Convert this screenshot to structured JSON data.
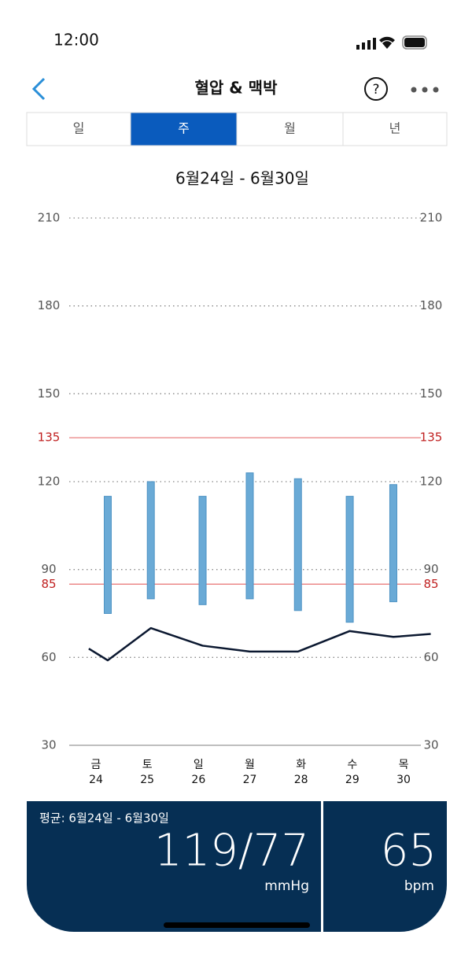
{
  "status_bar": {
    "time": "12:00"
  },
  "header": {
    "title": "혈압 & 맥박"
  },
  "tabs": {
    "items": [
      "일",
      "주",
      "월",
      "년"
    ],
    "selected": 1
  },
  "chart_data": {
    "type": "range-bar-line",
    "title": "6월24일 - 6월30일",
    "categories": [
      "24",
      "25",
      "26",
      "27",
      "28",
      "29",
      "30"
    ],
    "weekdays": [
      "금",
      "토",
      "일",
      "월",
      "화",
      "수",
      "목"
    ],
    "xlim": [
      23.5,
      30.5
    ],
    "ylim": [
      30,
      210
    ],
    "yticks": [
      30,
      60,
      90,
      120,
      150,
      180,
      210
    ],
    "reference_lines": {
      "values": [
        135,
        85
      ],
      "color": "#e05050"
    },
    "series": [
      {
        "name": "systolic",
        "x": [
          24.23,
          25.07,
          26.08,
          27,
          27.94,
          28.95,
          29.8
        ],
        "values": [
          115,
          120,
          115,
          123,
          121,
          115,
          119
        ],
        "color": "#6aaad6"
      },
      {
        "name": "diastolic",
        "x": [
          24.23,
          25.07,
          26.08,
          27,
          27.94,
          28.95,
          29.8
        ],
        "values": [
          75,
          80,
          78,
          80,
          76,
          72,
          79
        ],
        "color": "#6aaad6"
      },
      {
        "name": "pulse",
        "x": [
          23.86,
          24.23,
          25.07,
          26.08,
          27,
          27.94,
          28.95,
          29.8,
          30.53
        ],
        "values": [
          63,
          59,
          70,
          64,
          62,
          62,
          69,
          67,
          68
        ],
        "color": "#0b1830"
      }
    ]
  },
  "summary": {
    "label": "평균: 6월24일 - 6월30일",
    "bp": "119/77",
    "bp_unit": "mmHg",
    "pulse": "65",
    "pulse_unit": "bpm"
  }
}
